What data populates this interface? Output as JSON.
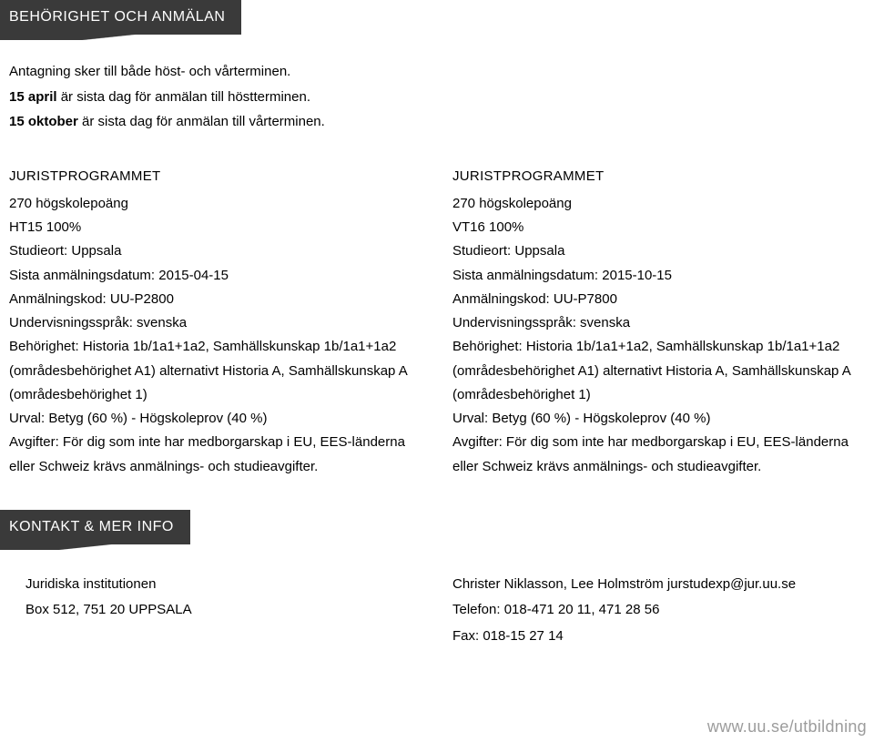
{
  "header": {
    "tab_label": "BEHÖRIGHET OCH ANMÄLAN"
  },
  "intro": {
    "line1": "Antagning sker till både höst- och vårterminen.",
    "line2_bold": "15 april",
    "line2_rest": " är sista dag för anmälan till höstterminen.",
    "line3_bold": "15 oktober",
    "line3_rest": " är sista dag för anmälan till vårterminen."
  },
  "programs": [
    {
      "title": "JURISTPROGRAMMET",
      "credits": "270 högskolepoäng",
      "term": "HT15 100%",
      "location": "Studieort: Uppsala",
      "deadline": "Sista anmälningsdatum: 2015-04-15",
      "code": "Anmälningskod: UU-P2800",
      "language": "Undervisningsspråk: svenska",
      "eligibility": "Behörighet: Historia 1b/1a1+1a2, Samhällskunskap 1b/1a1+1a2 (områdesbehörighet A1) alternativt Historia A, Samhällskunskap A (områdesbehörighet 1)",
      "selection": "Urval: Betyg (60 %) - Högskoleprov (40 %)",
      "fees": "Avgifter: För dig som inte har medborgarskap i EU, EES-länderna eller Schweiz krävs anmälnings- och studieavgifter."
    },
    {
      "title": "JURISTPROGRAMMET",
      "credits": "270 högskolepoäng",
      "term": "VT16 100%",
      "location": "Studieort: Uppsala",
      "deadline": "Sista anmälningsdatum: 2015-10-15",
      "code": "Anmälningskod: UU-P7800",
      "language": "Undervisningsspråk: svenska",
      "eligibility": "Behörighet: Historia 1b/1a1+1a2, Samhällskunskap 1b/1a1+1a2 (områdesbehörighet A1) alternativt Historia A, Samhällskunskap A (områdesbehörighet 1)",
      "selection": "Urval: Betyg (60 %) - Högskoleprov (40 %)",
      "fees": "Avgifter: För dig som inte har medborgarskap i EU, EES-länderna eller Schweiz krävs anmälnings- och studieavgifter."
    }
  ],
  "contact_header": {
    "tab_label": "KONTAKT & MER INFO"
  },
  "contact": {
    "left": {
      "name": "Juridiska institutionen",
      "address": "Box 512, 751 20 UPPSALA"
    },
    "right": {
      "names": "Christer Niklasson, Lee Holmström",
      "email": " jurstudexp@jur.uu.se",
      "phone": "Telefon: 018-471 20 11, 471 28 56",
      "fax": "Fax: 018-15 27 14"
    }
  },
  "footer": {
    "url": "www.uu.se/utbildning"
  },
  "colors": {
    "tab_bg": "#3a3a3a",
    "tab_text": "#ffffff",
    "body_text": "#000000",
    "footer_text": "#9c9c9c",
    "page_bg": "#ffffff"
  }
}
